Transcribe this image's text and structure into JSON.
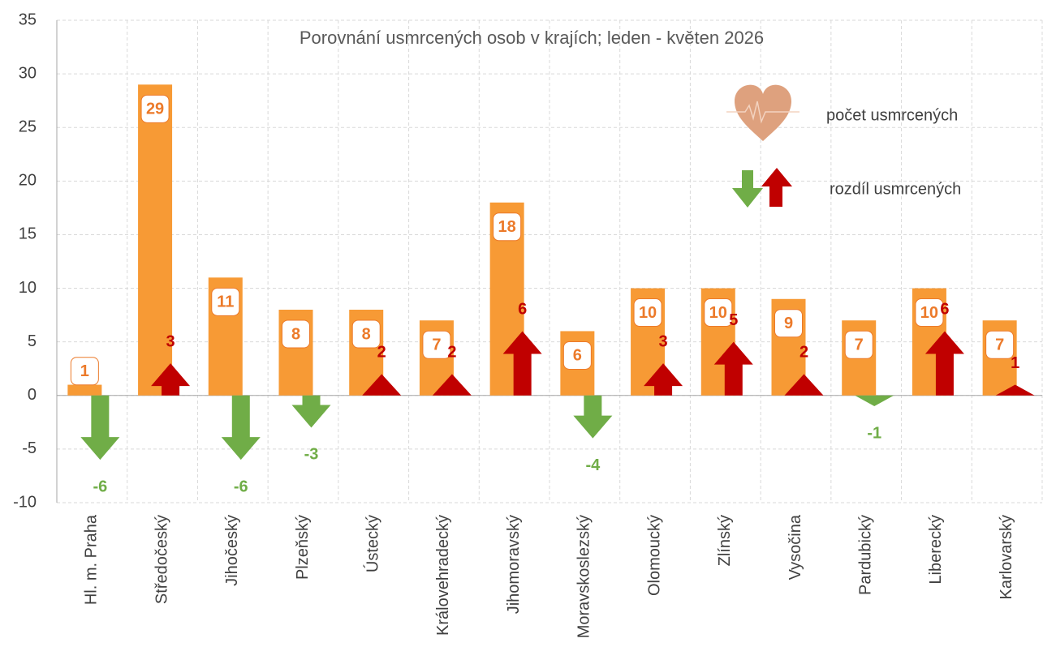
{
  "chart_data": {
    "type": "bar",
    "title": "Porovnání usmrcených osob v krajích; leden - květen 2026",
    "categories": [
      "Hl. m. Praha",
      "Středočeský",
      "Jihočeský",
      "Plzeňský",
      "Ústecký",
      "Královehradecký",
      "Jihomoravský",
      "Moravskoslezský",
      "Olomoucký",
      "Zlínský",
      "Vysočina",
      "Pardubický",
      "Liberecký",
      "Karlovarský"
    ],
    "series": [
      {
        "name": "počet usmrcených",
        "color": "#f79a35",
        "label_color": "#ec7a2a",
        "values": [
          1,
          29,
          11,
          8,
          8,
          7,
          18,
          6,
          10,
          10,
          9,
          7,
          10,
          7
        ]
      },
      {
        "name": "rozdíl usmrcených",
        "color": "#c00000",
        "negative_color": "#70ad47",
        "values": [
          -6,
          3,
          -6,
          -3,
          2,
          2,
          6,
          -4,
          3,
          5,
          2,
          -1,
          6,
          1
        ]
      }
    ],
    "ylim": [
      -10,
      35
    ],
    "yticks": [
      -10,
      -5,
      0,
      5,
      10,
      15,
      20,
      25,
      30,
      35
    ],
    "grid": true
  }
}
